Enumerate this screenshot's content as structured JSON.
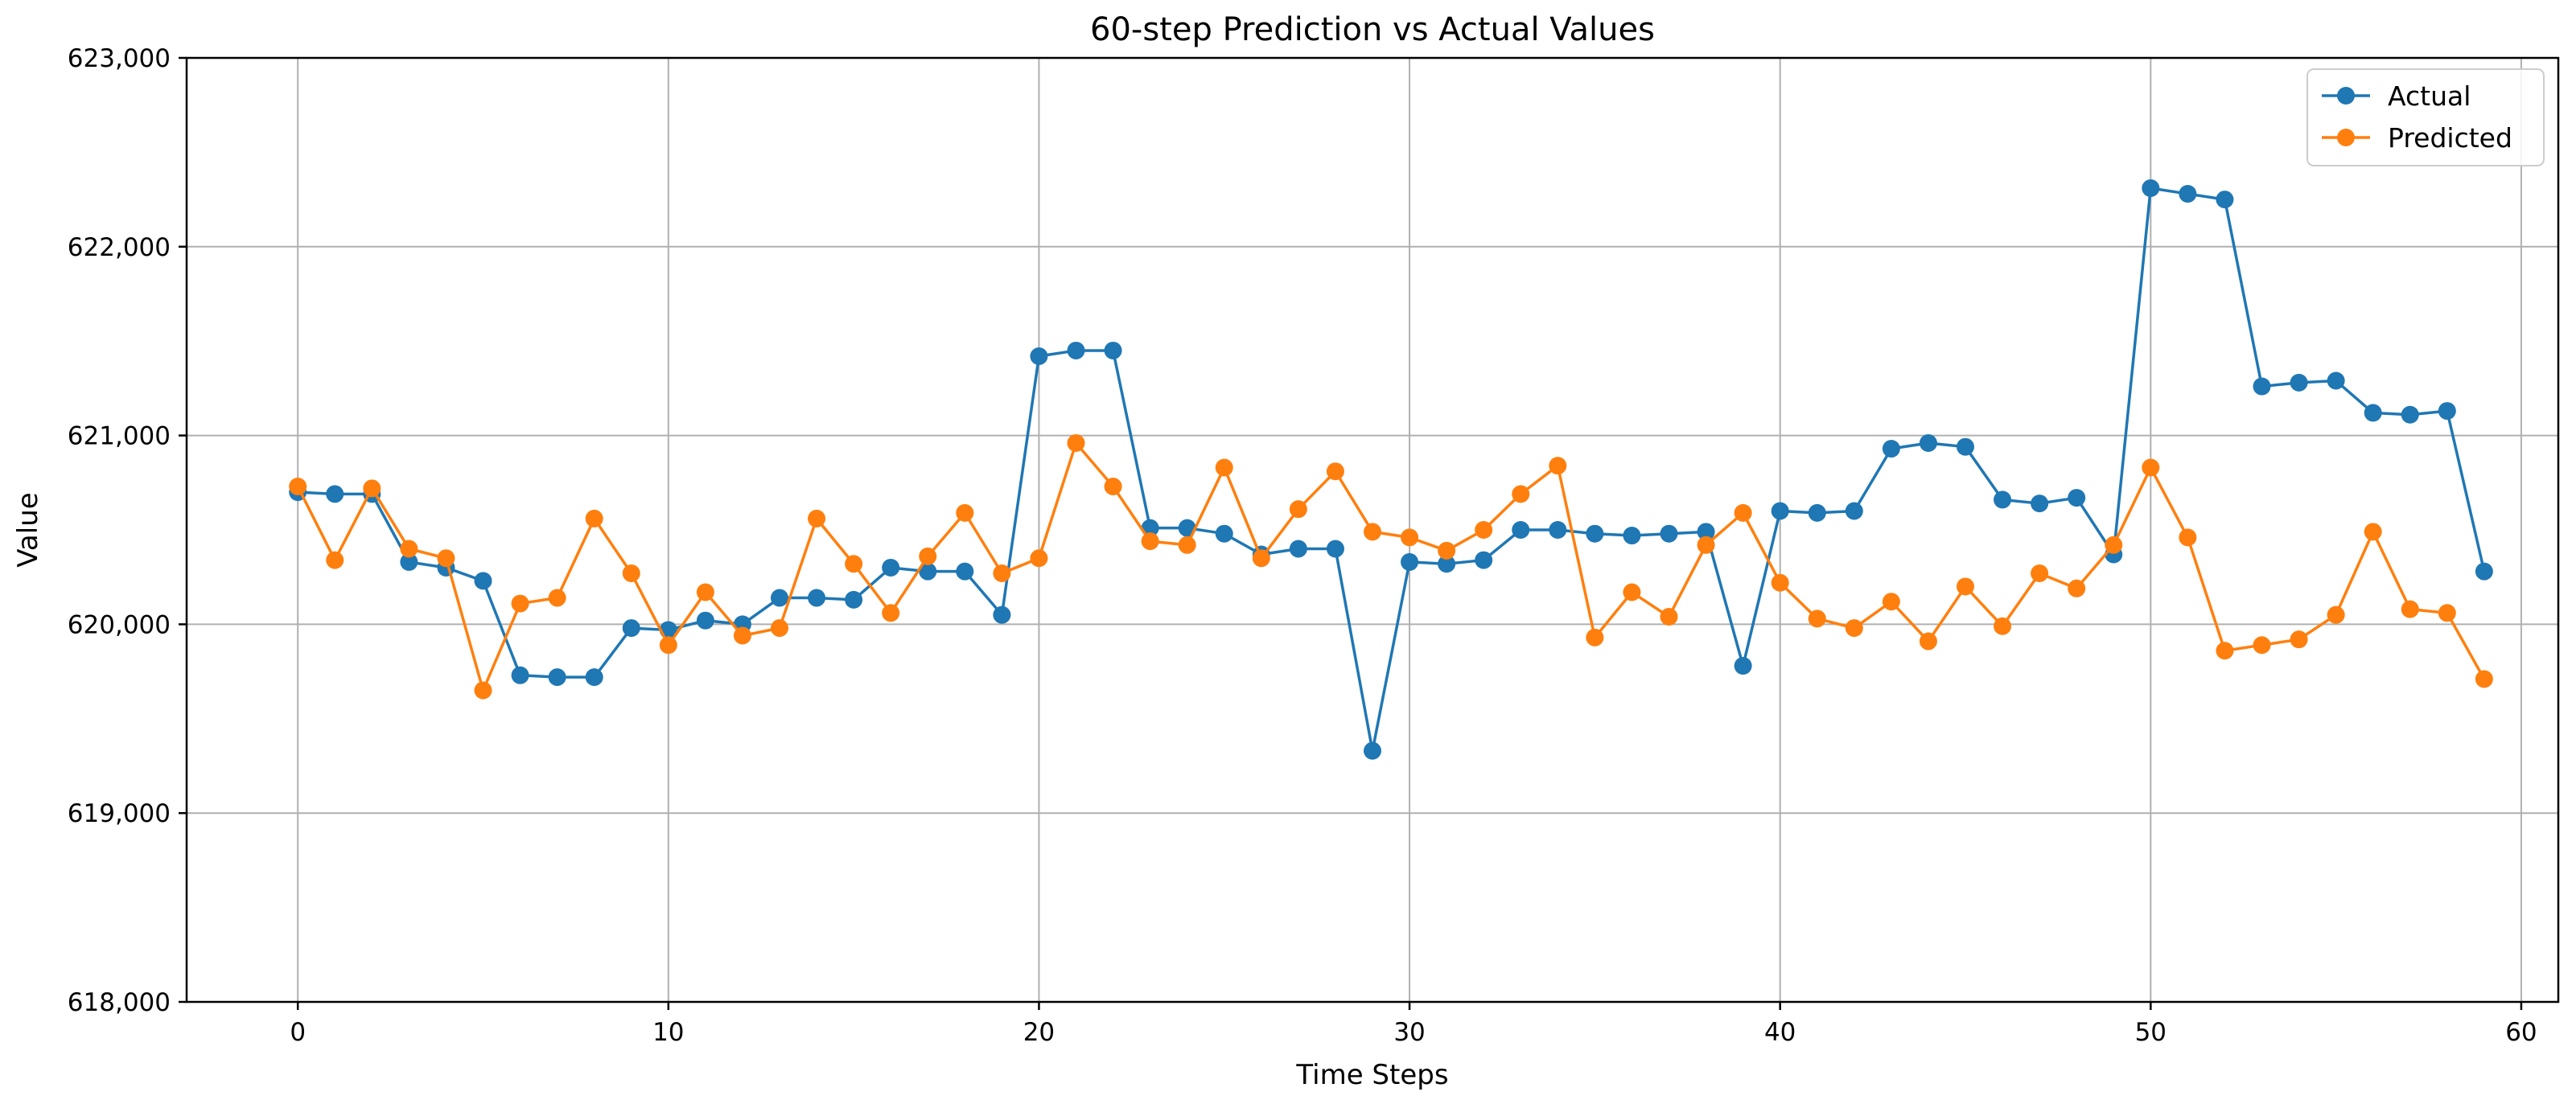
{
  "chart_data": {
    "type": "line",
    "title": "60-step Prediction vs Actual Values",
    "xlabel": "Time Steps",
    "ylabel": "Value",
    "xlim": [
      -3,
      61
    ],
    "ylim": [
      618000,
      623000
    ],
    "x_ticks": [
      0,
      10,
      20,
      30,
      40,
      50,
      60
    ],
    "y_ticks": [
      618000,
      619000,
      620000,
      621000,
      622000,
      623000
    ],
    "y_tick_labels": [
      "618,000",
      "619,000",
      "620,000",
      "621,000",
      "622,000",
      "623,000"
    ],
    "grid": true,
    "legend_position": "top-right",
    "x": [
      0,
      1,
      2,
      3,
      4,
      5,
      6,
      7,
      8,
      9,
      10,
      11,
      12,
      13,
      14,
      15,
      16,
      17,
      18,
      19,
      20,
      21,
      22,
      23,
      24,
      25,
      26,
      27,
      28,
      29,
      30,
      31,
      32,
      33,
      34,
      35,
      36,
      37,
      38,
      39,
      40,
      41,
      42,
      43,
      44,
      45,
      46,
      47,
      48,
      49,
      50,
      51,
      52,
      53,
      54,
      55,
      56,
      57,
      58,
      59
    ],
    "series": [
      {
        "name": "Actual",
        "color": "#1f77b4",
        "values": [
          620700,
          620690,
          620690,
          620330,
          620300,
          620230,
          619730,
          619720,
          619720,
          619980,
          619970,
          620020,
          620000,
          620140,
          620140,
          620130,
          620300,
          620280,
          620280,
          620050,
          621420,
          621450,
          621450,
          620510,
          620510,
          620480,
          620370,
          620400,
          620400,
          619330,
          620330,
          620320,
          620340,
          620500,
          620500,
          620480,
          620470,
          620480,
          620490,
          619780,
          620600,
          620590,
          620600,
          620930,
          620960,
          620940,
          620660,
          620640,
          620670,
          620370,
          622310,
          622280,
          622250,
          621260,
          621280,
          621290,
          621120,
          621110,
          621130,
          620280
        ]
      },
      {
        "name": "Predicted",
        "color": "#ff7f0e",
        "values": [
          620730,
          620340,
          620720,
          620400,
          620350,
          619650,
          620110,
          620140,
          620560,
          620270,
          619890,
          620170,
          619940,
          619980,
          620560,
          620320,
          620060,
          620360,
          620590,
          620270,
          620350,
          620960,
          620730,
          620440,
          620420,
          620830,
          620350,
          620610,
          620810,
          620490,
          620460,
          620390,
          620500,
          620690,
          620840,
          619930,
          620170,
          620040,
          620420,
          620590,
          620220,
          620030,
          619980,
          620120,
          619910,
          620200,
          619990,
          620270,
          620190,
          620420,
          620830,
          620460,
          619860,
          619890,
          619920,
          620050,
          620490,
          620080,
          620060,
          619710
        ]
      }
    ]
  }
}
